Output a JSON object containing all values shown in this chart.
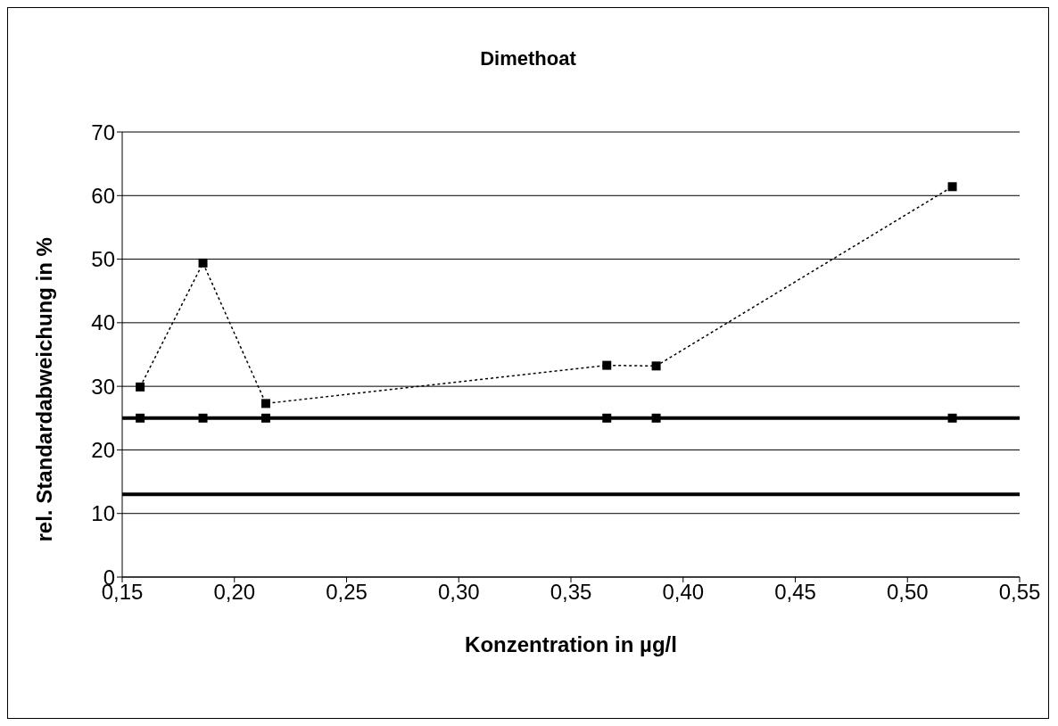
{
  "chart_data": {
    "type": "line",
    "title": "Dimethoat",
    "xlabel": "Konzentration in µg/l",
    "ylabel": "rel. Standardabweichung in %",
    "x": [
      0.158,
      0.186,
      0.214,
      0.366,
      0.388,
      0.52
    ],
    "series": [
      {
        "color": "#000000",
        "values": [
          29.9,
          49.4,
          27.3,
          33.3,
          33.2,
          61.4
        ],
        "line_style": "dotted"
      },
      {
        "type": "scatter",
        "color": "#000000",
        "values": [
          25,
          25,
          25,
          25,
          25,
          25
        ]
      }
    ],
    "marker": "square",
    "grid": "y",
    "legend": false,
    "xlim": [
      0.15,
      0.55
    ],
    "xticks": [
      {
        "value": 0.15,
        "label": "0,15"
      },
      {
        "value": 0.2,
        "label": "0,20"
      },
      {
        "value": 0.25,
        "label": "0,25"
      },
      {
        "value": 0.3,
        "label": "0,30"
      },
      {
        "value": 0.35,
        "label": "0,35"
      },
      {
        "value": 0.4,
        "label": "0,40"
      },
      {
        "value": 0.45,
        "label": "0,45"
      },
      {
        "value": 0.5,
        "label": "0,50"
      },
      {
        "value": 0.55,
        "label": "0,55"
      }
    ],
    "ylim": [
      0,
      70
    ],
    "yticks": [
      0,
      10,
      20,
      30,
      40,
      50,
      60,
      70
    ],
    "ref_lines": [
      {
        "axis": "y",
        "value": 25,
        "color": "#000000"
      },
      {
        "axis": "y",
        "value": 13,
        "color": "#000000"
      }
    ]
  }
}
